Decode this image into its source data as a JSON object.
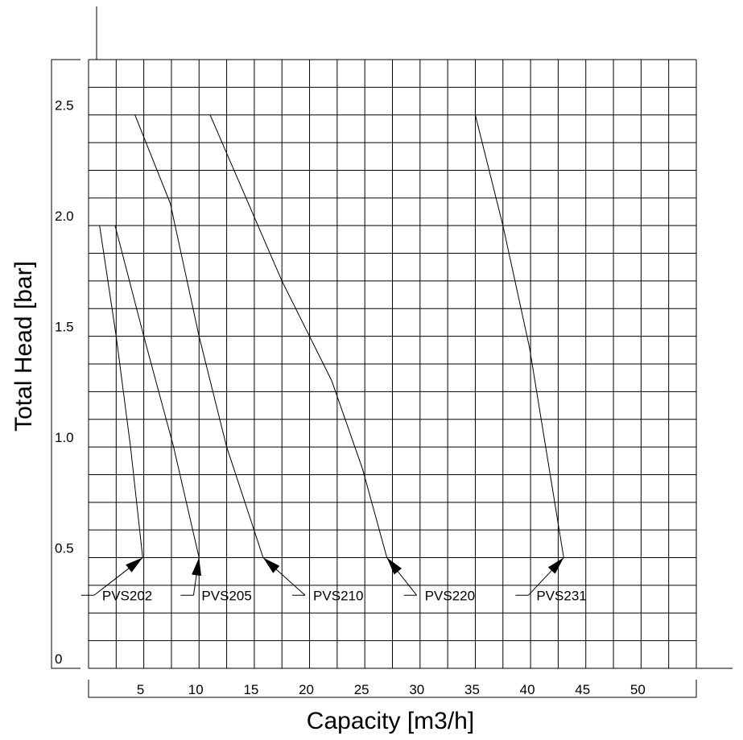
{
  "chart_data": {
    "type": "line",
    "title": "",
    "xlabel": "Capacity [m3/h]",
    "ylabel": "Total Head [bar]",
    "xlim": [
      0,
      55
    ],
    "ylim": [
      0,
      2.75
    ],
    "x_ticks": [
      5,
      10,
      15,
      20,
      25,
      30,
      35,
      40,
      45,
      50
    ],
    "x_tick_labels": [
      "5",
      "10",
      "15",
      "20",
      "25",
      "30",
      "35",
      "40",
      "45",
      "50"
    ],
    "y_ticks": [
      0,
      0.5,
      1.0,
      1.5,
      2.0,
      2.5
    ],
    "y_tick_labels": [
      "0",
      "0.5",
      "1.0",
      "1.5",
      "2.0",
      "2.5"
    ],
    "grid": true,
    "grid_x_step": 2.5,
    "grid_y_step": 0.125,
    "legend": "none",
    "series": [
      {
        "name": "PVS202",
        "points": [
          [
            1.0,
            2.0
          ],
          [
            2.5,
            1.5
          ],
          [
            3.8,
            1.0
          ],
          [
            4.9,
            0.5
          ]
        ],
        "label_anchor": [
          0.5,
          0.33
        ]
      },
      {
        "name": "PVS205",
        "points": [
          [
            2.4,
            2.0
          ],
          [
            5.0,
            1.5
          ],
          [
            7.7,
            1.0
          ],
          [
            10.0,
            0.5
          ]
        ],
        "label_anchor": [
          9.5,
          0.33
        ]
      },
      {
        "name": "PVS210",
        "points": [
          [
            4.2,
            2.5
          ],
          [
            7.4,
            2.1
          ],
          [
            10.0,
            1.5
          ],
          [
            12.5,
            1.0
          ],
          [
            15.8,
            0.5
          ]
        ],
        "label_anchor": [
          19.6,
          0.33
        ]
      },
      {
        "name": "PVS220",
        "points": [
          [
            11.0,
            2.5
          ],
          [
            17.5,
            1.75
          ],
          [
            22.0,
            1.3
          ],
          [
            24.8,
            0.9
          ],
          [
            27.0,
            0.5
          ]
        ],
        "label_anchor": [
          29.7,
          0.33
        ]
      },
      {
        "name": "PVS231",
        "points": [
          [
            35.0,
            2.5
          ],
          [
            37.5,
            2.0
          ],
          [
            39.9,
            1.45
          ],
          [
            43.0,
            0.5
          ]
        ],
        "label_anchor": [
          39.8,
          0.33
        ]
      }
    ]
  }
}
